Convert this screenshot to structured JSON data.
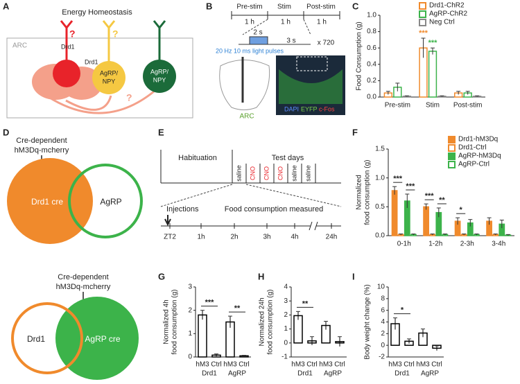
{
  "panel_letters": [
    "A",
    "B",
    "C",
    "D",
    "E",
    "F",
    "G",
    "H",
    "I"
  ],
  "panel_a": {
    "title": "Energy Homeostasis",
    "region": "ARC",
    "receptor_labels": [
      "Drd1",
      "Drd1"
    ],
    "neurons": [
      [
        "AgRP/",
        "NPY"
      ],
      [
        "AgRP/",
        "NPY"
      ]
    ],
    "question_marks": [
      "?",
      "?",
      "?"
    ]
  },
  "panel_b": {
    "phases": [
      "Pre-stim",
      "Stim",
      "Post-stim"
    ],
    "durations": [
      "1 h",
      "1 h",
      "1 h"
    ],
    "pulse_on": "2 s",
    "pulse_off": "3 s",
    "repeats": "x 720",
    "stimulus": "20 Hz 10 ms light pulses",
    "region": "ARC",
    "stains": [
      "DAPI",
      "EYFP",
      "c-Fos"
    ]
  },
  "panel_d": {
    "top": {
      "virus": [
        "Cre-dependent",
        "hM3Dq-mcherry"
      ],
      "labels": [
        "Drd1 cre",
        "AgRP"
      ]
    },
    "bottom": {
      "virus": [
        "Cre-dependent",
        "hM3Dq-mcherry"
      ],
      "labels": [
        "Drd1",
        "AgRP cre"
      ]
    }
  },
  "panel_e": {
    "phases": [
      "Habituation",
      "Test days"
    ],
    "injections": [
      "saline",
      "CNO",
      "CNO",
      "CNO",
      "saline",
      "saline"
    ],
    "start": "Injections",
    "measure": "Food consumption measured",
    "times": [
      "ZT2",
      "1h",
      "2h",
      "3h",
      "4h",
      "24h"
    ]
  },
  "chart_data": [
    {
      "type": "bar",
      "ylabel": [
        "Food Consumption (g)"
      ],
      "categories": [
        "Pre-stim",
        "Stim",
        "Post-stim"
      ],
      "series": [
        {
          "name": "Drd1-ChR2",
          "color": "#f08a2c",
          "style": "outline",
          "values": [
            0.05,
            0.6,
            0.05
          ],
          "errors": [
            0.02,
            0.12,
            0.02
          ]
        },
        {
          "name": "AgRP-ChR2",
          "color": "#3cb34a",
          "style": "outline",
          "values": [
            0.12,
            0.56,
            0.05
          ],
          "errors": [
            0.05,
            0.04,
            0.02
          ]
        },
        {
          "name": "Neg Ctrl",
          "color": "#888888",
          "style": "outline",
          "values": [
            0.01,
            0.01,
            0.01
          ],
          "errors": [
            0.005,
            0.005,
            0.005
          ]
        }
      ],
      "ylim": [
        0,
        1
      ],
      "yticks": [
        {
          "value": 0,
          "label": "0.0"
        },
        0.2,
        0.4,
        0.6,
        0.8,
        {
          "value": 1,
          "label": "1.0"
        }
      ],
      "legend": "top-right",
      "annotations": [
        "***",
        "***"
      ]
    },
    {
      "type": "bar",
      "ylabel": [
        "Normalized",
        "food consumption (g)"
      ],
      "categories": [
        "0-1h",
        "1-2h",
        "2-3h",
        "3-4h"
      ],
      "series": [
        {
          "name": "Drd1-hM3Dq",
          "color": "#f08a2c",
          "style": "filled",
          "values": [
            0.78,
            0.5,
            0.25,
            0.25
          ],
          "errors": [
            0.07,
            0.05,
            0.06,
            0.06
          ]
        },
        {
          "name": "Drd1-Ctrl",
          "color": "#f08a2c",
          "style": "outline",
          "values": [
            0.02,
            0.02,
            0.02,
            0.02
          ],
          "errors": [
            0.01,
            0.01,
            0.01,
            0.01
          ]
        },
        {
          "name": "AgRP-hM3Dq",
          "color": "#3cb34a",
          "style": "filled",
          "values": [
            0.6,
            0.4,
            0.22,
            0.2
          ],
          "errors": [
            0.12,
            0.08,
            0.06,
            0.07
          ]
        },
        {
          "name": "AgRP-Ctrl",
          "color": "#3cb34a",
          "style": "outline",
          "values": [
            0.02,
            0.02,
            0.02,
            0.01
          ],
          "errors": [
            0.01,
            0.01,
            0.01,
            0.01
          ]
        }
      ],
      "ylim": [
        0,
        1.5
      ],
      "yticks": [
        {
          "value": 0,
          "label": "0.0"
        },
        0.5,
        {
          "value": 1,
          "label": "1.0"
        },
        1.5
      ],
      "legend": "top-right",
      "annotations": [
        "***",
        "***",
        "***",
        "**",
        "*"
      ]
    },
    {
      "type": "bar",
      "ylabel": [
        "Normalized 4h",
        "food consumption (g)"
      ],
      "categories": [
        "hM3",
        "Ctrl",
        "hM3",
        "Ctrl"
      ],
      "groups": [
        "Drd1",
        "AgRP"
      ],
      "color": "#000000",
      "values": [
        1.8,
        0.08,
        1.5,
        0.05
      ],
      "errors": [
        0.2,
        0.05,
        0.25,
        0.02
      ],
      "ylim": [
        0,
        3
      ],
      "yticks": [
        0,
        1,
        2,
        3
      ],
      "annotations": [
        "***",
        "**"
      ]
    },
    {
      "type": "bar",
      "ylabel": [
        "Normalized 24h",
        "food consumption (g)"
      ],
      "categories": [
        "hM3",
        "Ctrl",
        "hM3",
        "Ctrl"
      ],
      "groups": [
        "Drd1",
        "AgRP"
      ],
      "color": "#000000",
      "values": [
        1.95,
        0.15,
        1.25,
        0.1
      ],
      "errors": [
        0.3,
        0.3,
        0.3,
        0.35
      ],
      "ylim": [
        -1,
        4
      ],
      "yticks": [
        -1,
        0,
        1,
        2,
        3,
        4
      ],
      "annotations": [
        "**"
      ]
    },
    {
      "type": "bar",
      "ylabel": [
        "Body weight change (%)"
      ],
      "categories": [
        "hM3",
        "Ctrl",
        "hM3",
        "Ctrl"
      ],
      "groups": [
        "Drd1",
        "AgRP"
      ],
      "color": "#000000",
      "values": [
        3.7,
        0.7,
        2.1,
        -0.5
      ],
      "errors": [
        1,
        0.4,
        0.7,
        0.4
      ],
      "ylim": [
        -2,
        10
      ],
      "yticks": [
        -2,
        0,
        2,
        4,
        6,
        8,
        10
      ],
      "annotations": [
        "*"
      ]
    }
  ]
}
